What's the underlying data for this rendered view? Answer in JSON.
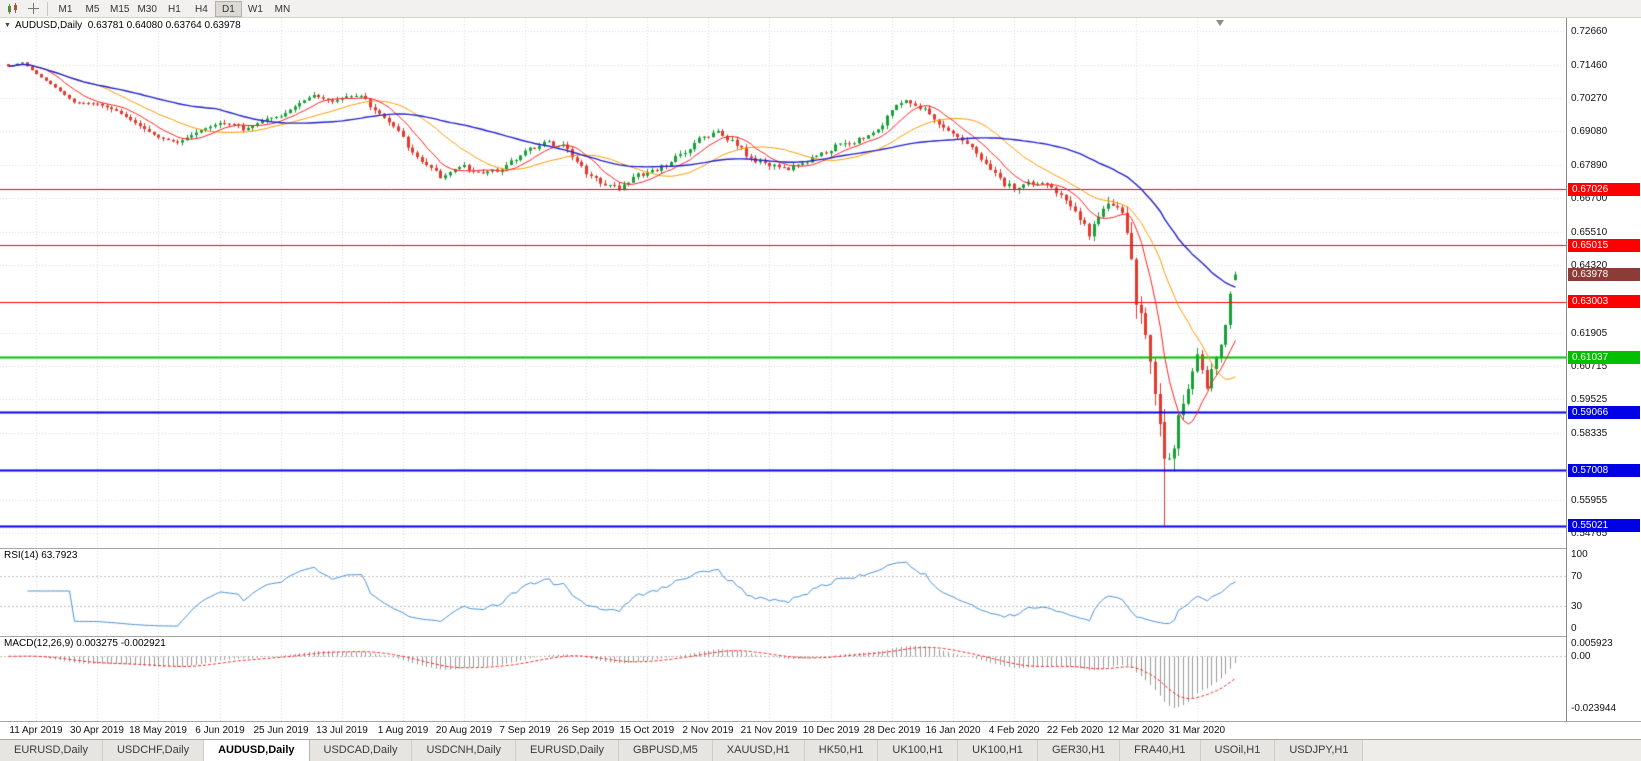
{
  "toolbar": {
    "timeframes": [
      {
        "label": "M1"
      },
      {
        "label": "M5"
      },
      {
        "label": "M15"
      },
      {
        "label": "M30"
      },
      {
        "label": "H1"
      },
      {
        "label": "H4"
      },
      {
        "label": "D1"
      },
      {
        "label": "W1"
      },
      {
        "label": "MN"
      }
    ],
    "active_timeframe": "D1"
  },
  "chart": {
    "symbol_label": "AUDUSD,Daily",
    "ohlc_string": "0.63781 0.64080 0.63764 0.63978",
    "rsi_label": "RSI(14) 63.7923",
    "macd_label": "MACD(12,26,9) 0.003275 -0.002921"
  },
  "chart_data": {
    "type": "candlestick",
    "symbol": "AUDUSD",
    "timeframe": "Daily",
    "current_ohlc": {
      "open": 0.63781,
      "high": 0.6408,
      "low": 0.63764,
      "close": 0.63978
    },
    "x_labels": [
      "11 Apr 2019",
      "30 Apr 2019",
      "18 May 2019",
      "6 Jun 2019",
      "25 Jun 2019",
      "13 Jul 2019",
      "1 Aug 2019",
      "20 Aug 2019",
      "7 Sep 2019",
      "26 Sep 2019",
      "15 Oct 2019",
      "2 Nov 2019",
      "21 Nov 2019",
      "10 Dec 2019",
      "28 Dec 2019",
      "16 Jan 2020",
      "4 Feb 2020",
      "22 Feb 2020",
      "12 Mar 2020",
      "31 Mar 2020"
    ],
    "y_axis_ticks": [
      "0.72660",
      "0.71460",
      "0.70270",
      "0.69080",
      "0.67890",
      "0.66700",
      "0.65510",
      "0.64320",
      "0.61905",
      "0.60715",
      "0.59525",
      "0.58335",
      "0.55955",
      "0.54765"
    ],
    "price_range": [
      0.54229,
      0.73124
    ],
    "candles_total": 262,
    "price_path_anchors": [
      [
        0,
        0.7148
      ],
      [
        3,
        0.7162
      ],
      [
        6,
        0.712
      ],
      [
        10,
        0.7072
      ],
      [
        14,
        0.7018
      ],
      [
        19,
        0.7012
      ],
      [
        23,
        0.6986
      ],
      [
        28,
        0.693
      ],
      [
        32,
        0.6888
      ],
      [
        36,
        0.6868
      ],
      [
        41,
        0.691
      ],
      [
        45,
        0.6932
      ],
      [
        50,
        0.692
      ],
      [
        55,
        0.6958
      ],
      [
        58,
        0.6962
      ],
      [
        62,
        0.7005
      ],
      [
        66,
        0.7038
      ],
      [
        69,
        0.7018
      ],
      [
        72,
        0.7032
      ],
      [
        75,
        0.7028
      ],
      [
        79,
        0.6975
      ],
      [
        83,
        0.6905
      ],
      [
        85,
        0.6858
      ],
      [
        88,
        0.68
      ],
      [
        92,
        0.6748
      ],
      [
        95,
        0.6772
      ],
      [
        97,
        0.6782
      ],
      [
        101,
        0.6755
      ],
      [
        105,
        0.6772
      ],
      [
        110,
        0.6838
      ],
      [
        114,
        0.6868
      ],
      [
        118,
        0.6858
      ],
      [
        121,
        0.68
      ],
      [
        123,
        0.6762
      ],
      [
        127,
        0.672
      ],
      [
        130,
        0.67
      ],
      [
        133,
        0.6748
      ],
      [
        136,
        0.6758
      ],
      [
        140,
        0.6788
      ],
      [
        144,
        0.684
      ],
      [
        148,
        0.6888
      ],
      [
        151,
        0.6902
      ],
      [
        155,
        0.6862
      ],
      [
        158,
        0.681
      ],
      [
        162,
        0.6788
      ],
      [
        166,
        0.6772
      ],
      [
        170,
        0.6802
      ],
      [
        174,
        0.6838
      ],
      [
        178,
        0.6868
      ],
      [
        182,
        0.688
      ],
      [
        186,
        0.6938
      ],
      [
        189,
        0.7
      ],
      [
        191,
        0.7022
      ],
      [
        194,
        0.6998
      ],
      [
        198,
        0.6928
      ],
      [
        201,
        0.6898
      ],
      [
        205,
        0.6852
      ],
      [
        209,
        0.6772
      ],
      [
        212,
        0.6722
      ],
      [
        214,
        0.6702
      ],
      [
        218,
        0.6728
      ],
      [
        222,
        0.6712
      ],
      [
        225,
        0.6655
      ],
      [
        227,
        0.6622
      ],
      [
        230,
        0.6548
      ],
      [
        233,
        0.6642
      ],
      [
        236,
        0.6618
      ],
      [
        238,
        0.6572
      ],
      [
        240,
        0.631
      ],
      [
        242,
        0.616
      ],
      [
        244,
        0.596
      ],
      [
        246,
        0.5741
      ],
      [
        248,
        0.581
      ],
      [
        250,
        0.5938
      ],
      [
        252,
        0.6052
      ],
      [
        253,
        0.6128
      ],
      [
        255,
        0.6002
      ],
      [
        257,
        0.6088
      ],
      [
        259,
        0.6228
      ],
      [
        260,
        0.633
      ],
      [
        261,
        0.63978
      ]
    ],
    "volatility_anchors": [
      [
        0,
        0.0019
      ],
      [
        225,
        0.0022
      ],
      [
        236,
        0.0045
      ],
      [
        240,
        0.0085
      ],
      [
        246,
        0.0095
      ],
      [
        250,
        0.0055
      ],
      [
        255,
        0.0038
      ],
      [
        261,
        0.0025
      ]
    ],
    "candle_overrides": [
      {
        "i": 246,
        "o": 0.5872,
        "h": 0.5918,
        "l": 0.5503,
        "c": 0.5741
      },
      {
        "i": 261,
        "o": 0.63781,
        "h": 0.6408,
        "l": 0.63764,
        "c": 0.63978
      }
    ],
    "horizontal_lines": [
      {
        "price": 0.67026,
        "label": "0.67026",
        "color": "#ff0000",
        "width": 1
      },
      {
        "price": 0.65015,
        "label": "0.65015",
        "color": "#ff0000",
        "width": 1
      },
      {
        "price": 0.63003,
        "label": "0.63003",
        "color": "#ff0000",
        "width": 1
      },
      {
        "price": 0.61037,
        "label": "0.61037",
        "color": "#00c000",
        "width": 2
      },
      {
        "price": 0.59066,
        "label": "0.59066",
        "color": "#0000e6",
        "width": 2
      },
      {
        "price": 0.57008,
        "label": "0.57008",
        "color": "#0000e6",
        "width": 2
      },
      {
        "price": 0.55021,
        "label": "0.55021",
        "color": "#0000e6",
        "width": 2
      }
    ],
    "current_price_marker": {
      "price": 0.63978,
      "label": "0.63978",
      "color": "#8b3c36"
    },
    "moving_averages": [
      {
        "period": 8,
        "color": "#ff2020"
      },
      {
        "period": 20,
        "color": "#ff9900"
      },
      {
        "period": 45,
        "color": "#2222cc"
      }
    ],
    "rsi": {
      "period": 14,
      "current": 63.7923,
      "color": "#4a90d9",
      "scale_ticks": [
        "100",
        "70",
        "30",
        "0"
      ],
      "level_lines": [
        70,
        30
      ]
    },
    "macd": {
      "fast": 12,
      "slow": 26,
      "signal": 9,
      "current_macd": 0.003275,
      "current_signal": -0.002921,
      "scale_ticks": [
        "0.005923",
        "0.00",
        "-0.023944"
      ],
      "range": [
        -0.027,
        0.0075
      ],
      "hist_color": "#9a9a9a",
      "signal_color": "#ff2020"
    },
    "colors": {
      "up": "#18a038",
      "down": "#e23a2e",
      "grid": "#dcdcdc",
      "background": "#ffffff"
    }
  },
  "tabs": [
    {
      "label": "EURUSD,Daily",
      "active": false
    },
    {
      "label": "USDCHF,Daily",
      "active": false
    },
    {
      "label": "AUDUSD,Daily",
      "active": true
    },
    {
      "label": "USDCAD,Daily",
      "active": false
    },
    {
      "label": "USDCNH,Daily",
      "active": false
    },
    {
      "label": "EURUSD,Daily",
      "active": false
    },
    {
      "label": "GBPUSD,M5",
      "active": false
    },
    {
      "label": "XAUUSD,H1",
      "active": false
    },
    {
      "label": "HK50,H1",
      "active": false
    },
    {
      "label": "UK100,H1",
      "active": false
    },
    {
      "label": "UK100,H1",
      "active": false
    },
    {
      "label": "GER30,H1",
      "active": false
    },
    {
      "label": "FRA40,H1",
      "active": false
    },
    {
      "label": "USOil,H1",
      "active": false
    },
    {
      "label": "USDJPY,H1",
      "active": false
    }
  ]
}
